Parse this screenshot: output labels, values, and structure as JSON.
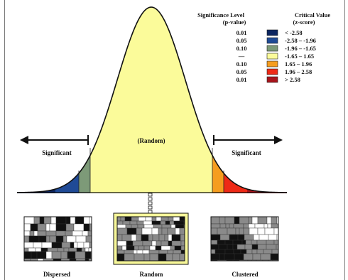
{
  "legend": {
    "significance_header_line1": "Significance Level",
    "significance_header_line2": "(p-value)",
    "critical_header_line1": "Critical Value",
    "critical_header_line2": "(z-score)",
    "rows": [
      {
        "p": "0.01",
        "z": "< -2.58",
        "color": "#0c2560"
      },
      {
        "p": "0.05",
        "z": "-2.58 – -1.96",
        "color": "#1f4a96"
      },
      {
        "p": "0.10",
        "z": "-1.96 – -1.65",
        "color": "#7d9a78"
      },
      {
        "p": "—",
        "z": "-1.65 – 1.65",
        "color": "#fbfb9a"
      },
      {
        "p": "0.10",
        "z": "1.65 – 1.96",
        "color": "#f59d1f"
      },
      {
        "p": "0.05",
        "z": "1.96 – 2.58",
        "color": "#ee2a16"
      },
      {
        "p": "0.01",
        "z": "> 2.58",
        "color": "#a8141b"
      }
    ]
  },
  "curve": {
    "center_label": "(Random)",
    "left_label": "Significant",
    "right_label": "Significant"
  },
  "maps": [
    {
      "label": "Dispersed"
    },
    {
      "label": "Random"
    },
    {
      "label": "Clustered"
    }
  ]
}
